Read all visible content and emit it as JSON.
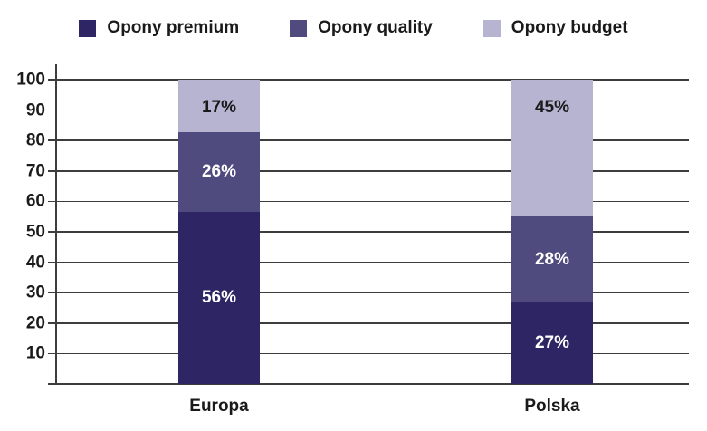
{
  "chart_data": {
    "type": "bar",
    "stacked": true,
    "title": "",
    "categories": [
      "Europa",
      "Polska"
    ],
    "series": [
      {
        "name": "Opony premium",
        "values": [
          56,
          27
        ],
        "labels": [
          "56%",
          "27%"
        ],
        "color": "#2e2564",
        "label_color": "#ffffff"
      },
      {
        "name": "Opony quality",
        "values": [
          26,
          28
        ],
        "labels": [
          "26%",
          "28%"
        ],
        "color": "#4f4b7e",
        "label_color": "#ffffff"
      },
      {
        "name": "Opony budget",
        "values": [
          17,
          45
        ],
        "labels": [
          "17%",
          "45%"
        ],
        "color": "#b7b4d2",
        "label_color": "#1a1a1a"
      }
    ],
    "ylim": [
      0,
      100
    ],
    "yticks": [
      10,
      20,
      30,
      40,
      50,
      60,
      70,
      80,
      90,
      100
    ],
    "grid": true,
    "legend_position": "top"
  },
  "colors": {
    "grid": "#3d3d3d",
    "axis": "#3d3d3d",
    "text": "#1a1a1a",
    "background": "#ffffff"
  }
}
